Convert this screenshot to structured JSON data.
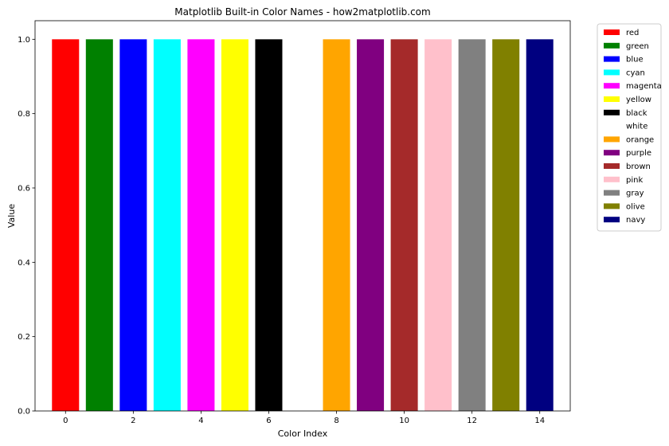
{
  "chart_data": {
    "type": "bar",
    "title": "Matplotlib Built-in Color Names - how2matplotlib.com",
    "xlabel": "Color Index",
    "ylabel": "Value",
    "x": [
      0,
      1,
      2,
      3,
      4,
      5,
      6,
      7,
      8,
      9,
      10,
      11,
      12,
      13,
      14
    ],
    "values": [
      1,
      1,
      1,
      1,
      1,
      1,
      1,
      1,
      1,
      1,
      1,
      1,
      1,
      1,
      1
    ],
    "bar_colors": [
      "#ff0000",
      "#008000",
      "#0000ff",
      "#00ffff",
      "#ff00ff",
      "#ffff00",
      "#000000",
      "#ffffff",
      "#ffa500",
      "#800080",
      "#a52a2a",
      "#ffc0cb",
      "#808080",
      "#808000",
      "#000080"
    ],
    "legend": [
      "red",
      "green",
      "blue",
      "cyan",
      "magenta",
      "yellow",
      "black",
      "white",
      "orange",
      "purple",
      "brown",
      "pink",
      "gray",
      "olive",
      "navy"
    ],
    "legend_placement": "outside-upper-right",
    "xticks": [
      "0",
      "2",
      "4",
      "6",
      "8",
      "10",
      "12",
      "14"
    ],
    "xtick_values": [
      0,
      2,
      4,
      6,
      8,
      10,
      12,
      14
    ],
    "yticks": [
      "0.0",
      "0.2",
      "0.4",
      "0.6",
      "0.8",
      "1.0"
    ],
    "ytick_values": [
      0,
      0.2,
      0.4,
      0.6,
      0.8,
      1.0
    ],
    "xlim": [
      -0.9,
      14.9
    ],
    "ylim": [
      0,
      1.05
    ],
    "grid": false
  }
}
